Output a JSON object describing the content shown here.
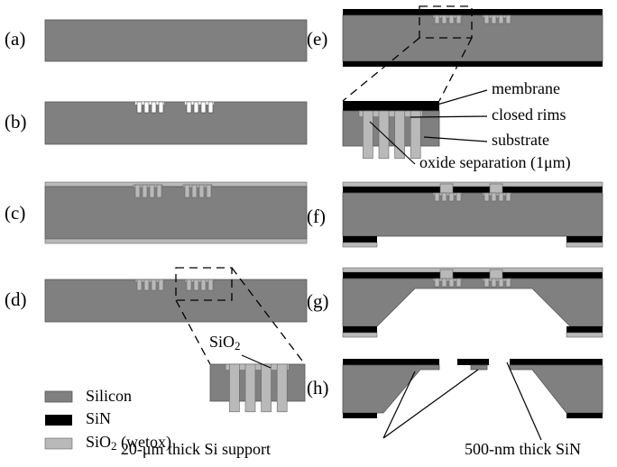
{
  "panels": [
    "(a)",
    "(b)",
    "(c)",
    "(d)",
    "(e)",
    "(f)",
    "(g)",
    "(h)"
  ],
  "annotations": {
    "membrane": "membrane",
    "closed_rims": "closed rims",
    "substrate": "substrate",
    "oxide_separation": "oxide separation (1μm)",
    "sio2": {
      "base": "SiO",
      "sub": "2"
    },
    "si_support": "20-μm thick Si support",
    "sin_thick": "500-nm thick SiN"
  },
  "legend": [
    {
      "label": "Silicon"
    },
    {
      "label": "SiN"
    },
    {
      "base": "SiO",
      "sub": "2",
      "rest": " (wetox)"
    }
  ]
}
